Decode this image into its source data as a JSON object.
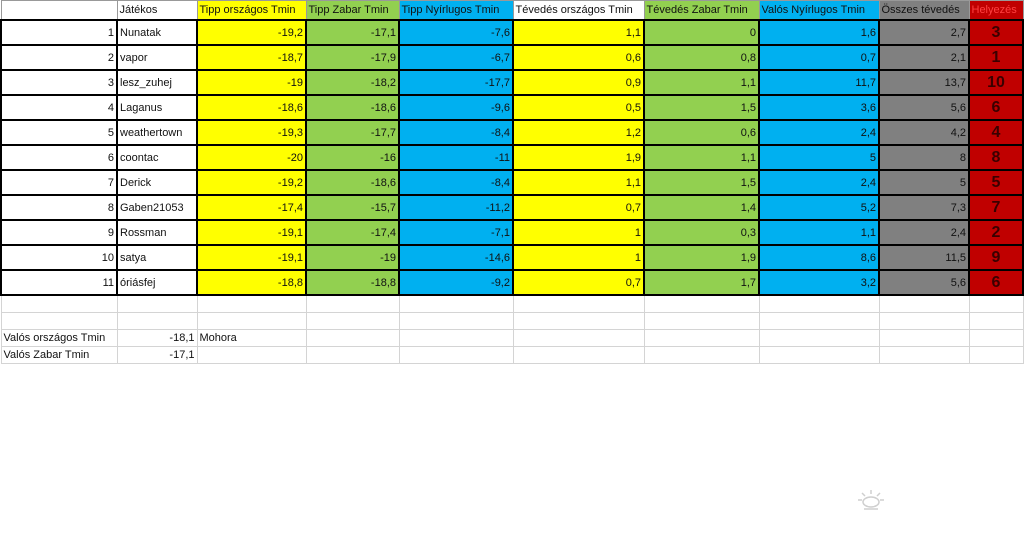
{
  "headers": [
    "",
    "Játékos",
    "Tipp országos Tmin",
    "Tipp Zabar Tmin",
    "Tipp Nyírlugos Tmin",
    "Tévedés országos Tmin",
    "Tévedés Zabar Tmin",
    "Valós Nyírlugos Tmin",
    "Összes tévedés",
    "Helyezés"
  ],
  "rows": [
    [
      "1",
      "Nunatak",
      "-19,2",
      "-17,1",
      "-7,6",
      "1,1",
      "0",
      "1,6",
      "2,7",
      "3"
    ],
    [
      "2",
      "vapor",
      "-18,7",
      "-17,9",
      "-6,7",
      "0,6",
      "0,8",
      "0,7",
      "2,1",
      "1"
    ],
    [
      "3",
      "lesz_zuhej",
      "-19",
      "-18,2",
      "-17,7",
      "0,9",
      "1,1",
      "11,7",
      "13,7",
      "10"
    ],
    [
      "4",
      "Laganus",
      "-18,6",
      "-18,6",
      "-9,6",
      "0,5",
      "1,5",
      "3,6",
      "5,6",
      "6"
    ],
    [
      "5",
      "weathertown",
      "-19,3",
      "-17,7",
      "-8,4",
      "1,2",
      "0,6",
      "2,4",
      "4,2",
      "4"
    ],
    [
      "6",
      "coontac",
      "-20",
      "-16",
      "-11",
      "1,9",
      "1,1",
      "5",
      "8",
      "8"
    ],
    [
      "7",
      "Derick",
      "-19,2",
      "-18,6",
      "-8,4",
      "1,1",
      "1,5",
      "2,4",
      "5",
      "5"
    ],
    [
      "8",
      "Gaben21053",
      "-17,4",
      "-15,7",
      "-11,2",
      "0,7",
      "1,4",
      "5,2",
      "7,3",
      "7"
    ],
    [
      "9",
      "Rossman",
      "-19,1",
      "-17,4",
      "-7,1",
      "1",
      "0,3",
      "1,1",
      "2,4",
      "2"
    ],
    [
      "10",
      "satya",
      "-19,1",
      "-19",
      "-14,6",
      "1",
      "1,9",
      "8,6",
      "11,5",
      "9"
    ],
    [
      "11",
      "óriásfej",
      "-18,8",
      "-18,8",
      "-9,2",
      "0,7",
      "1,7",
      "3,2",
      "5,6",
      "6"
    ]
  ],
  "extra": [
    [
      "",
      "",
      "",
      "",
      "",
      "",
      "",
      "",
      "",
      ""
    ],
    [
      "",
      "",
      "",
      "",
      "",
      "",
      "",
      "",
      "",
      ""
    ],
    [
      "Valós országos Tmin",
      "-18,1",
      "Mohora",
      "",
      "",
      "",
      "",
      "",
      "",
      ""
    ],
    [
      "Valós Zabar Tmin",
      "-17,1",
      "",
      "",
      "",
      "",
      "",
      "",
      "",
      ""
    ]
  ],
  "colors": {
    "yellow": "#ffff00",
    "green": "#92d050",
    "blue": "#00b0f0",
    "gray": "#808080",
    "red": "#c00000"
  },
  "icons": [
    "sun-icon"
  ]
}
